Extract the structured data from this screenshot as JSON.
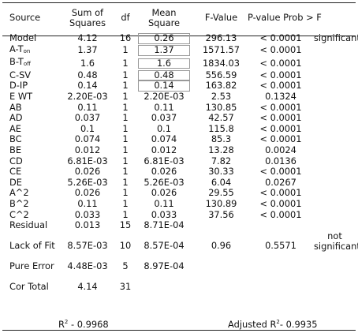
{
  "headers": {
    "source": "Source",
    "ss_line1": "Sum of",
    "ss_line2": "Squares",
    "df": "df",
    "ms_line1": "Mean",
    "ms_line2": "Square",
    "f": "F-Value",
    "p": "P-value Prob > F"
  },
  "rows": [
    {
      "source": "Model",
      "ss": "4.12",
      "df": "16",
      "ms": "0.26",
      "f": "296.13",
      "p": "< 0.0001",
      "note": "significant"
    },
    {
      "source": "A-T",
      "sub": "on",
      "ss": "1.37",
      "df": "1",
      "ms": "1.37",
      "f": "1571.57",
      "p": "< 0.0001",
      "note": ""
    },
    {
      "source": "B-T",
      "sub": "off",
      "ss": "1.6",
      "df": "1",
      "ms": "1.6",
      "f": "1834.03",
      "p": "< 0.0001",
      "note": ""
    },
    {
      "source": "C-SV",
      "ss": "0.48",
      "df": "1",
      "ms": "0.48",
      "f": "556.59",
      "p": "< 0.0001",
      "note": ""
    },
    {
      "source": "D-IP",
      "ss": "0.14",
      "df": "1",
      "ms": "0.14",
      "f": "163.82",
      "p": "< 0.0001",
      "note": ""
    },
    {
      "source": "E WT",
      "ss": "2.20E-03",
      "df": "1",
      "ms": "2.20E-03",
      "f": "2.53",
      "p": "0.1324",
      "note": ""
    },
    {
      "source": "AB",
      "ss": "0.11",
      "df": "1",
      "ms": "0.11",
      "f": "130.85",
      "p": "< 0.0001",
      "note": ""
    },
    {
      "source": "AD",
      "ss": "0.037",
      "df": "1",
      "ms": "0.037",
      "f": "42.57",
      "p": "< 0.0001",
      "note": ""
    },
    {
      "source": "AE",
      "ss": "0.1",
      "df": "1",
      "ms": "0.1",
      "f": "115.8",
      "p": "< 0.0001",
      "note": ""
    },
    {
      "source": "BC",
      "ss": "0.074",
      "df": "1",
      "ms": "0.074",
      "f": "85.3",
      "p": "< 0.0001",
      "note": ""
    },
    {
      "source": "BE",
      "ss": "0.012",
      "df": "1",
      "ms": "0.012",
      "f": "13.28",
      "p": "0.0024",
      "note": ""
    },
    {
      "source": "CD",
      "ss": "6.81E-03",
      "df": "1",
      "ms": "6.81E-03",
      "f": "7.82",
      "p": "0.0136",
      "note": ""
    },
    {
      "source": "CE",
      "ss": "0.026",
      "df": "1",
      "ms": "0.026",
      "f": "30.33",
      "p": "< 0.0001",
      "note": ""
    },
    {
      "source": "DE",
      "ss": "5.26E-03",
      "df": "1",
      "ms": "5.26E-03",
      "f": "6.04",
      "p": "0.0267",
      "note": ""
    },
    {
      "source": "A^2",
      "ss": "0.026",
      "df": "1",
      "ms": "0.026",
      "f": "29.55",
      "p": "< 0.0001",
      "note": ""
    },
    {
      "source": "B^2",
      "ss": "0.11",
      "df": "1",
      "ms": "0.11",
      "f": "130.89",
      "p": "< 0.0001",
      "note": ""
    },
    {
      "source": "C^2",
      "ss": "0.033",
      "df": "1",
      "ms": "0.033",
      "f": "37.56",
      "p": "< 0.0001",
      "note": ""
    },
    {
      "source": "Residual",
      "ss": "0.013",
      "df": "15",
      "ms": "8.71E-04",
      "f": "",
      "p": "",
      "note": ""
    },
    {
      "source": "Lack of Fit",
      "ss": "8.57E-03",
      "df": "10",
      "ms": "8.57E-04",
      "f": "0.96",
      "p": "0.5571",
      "note": "not significant"
    },
    {
      "source": "Pure Error",
      "ss": "4.48E-03",
      "df": "5",
      "ms": "8.97E-04",
      "f": "",
      "p": "",
      "note": ""
    },
    {
      "source": "Cor Total",
      "ss": "4.14",
      "df": "31",
      "ms": "",
      "f": "",
      "p": "",
      "note": ""
    }
  ],
  "footer": {
    "r2_label": "R",
    "r2_sup": "2",
    "r2_value": " - 0.9968",
    "adj_label": "Adjusted  R",
    "adj_sup": "2",
    "adj_value": "- 0.9935"
  }
}
